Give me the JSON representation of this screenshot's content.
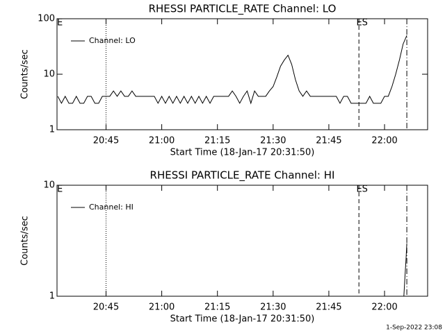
{
  "chart_data": [
    {
      "type": "line",
      "title": "RHESSI PARTICLE_RATE Channel: LO",
      "xlabel": "Start Time (18-Jan-17 20:31:50)",
      "ylabel": "Counts/sec",
      "log_y": true,
      "ylim": [
        1,
        100
      ],
      "yticks": [
        1,
        10,
        100
      ],
      "xlim": [
        1231.8,
        1331.6
      ],
      "xticks": [
        {
          "value": 1245,
          "label": "20:45"
        },
        {
          "value": 1260,
          "label": "21:00"
        },
        {
          "value": 1275,
          "label": "21:15"
        },
        {
          "value": 1290,
          "label": "21:30"
        },
        {
          "value": 1305,
          "label": "21:45"
        },
        {
          "value": 1320,
          "label": "22:00"
        }
      ],
      "x": [
        1232,
        1233,
        1234,
        1235,
        1236,
        1237,
        1238,
        1239,
        1240,
        1241,
        1242,
        1243,
        1244,
        1245,
        1246,
        1247,
        1248,
        1249,
        1250,
        1251,
        1252,
        1253,
        1254,
        1255,
        1256,
        1257,
        1258,
        1259,
        1260,
        1261,
        1262,
        1263,
        1264,
        1265,
        1266,
        1267,
        1268,
        1269,
        1270,
        1271,
        1272,
        1273,
        1274,
        1275,
        1276,
        1277,
        1278,
        1279,
        1280,
        1281,
        1282,
        1283,
        1284,
        1285,
        1286,
        1287,
        1288,
        1289,
        1290,
        1291,
        1292,
        1293,
        1294,
        1295,
        1296,
        1297,
        1298,
        1299,
        1300,
        1301,
        1302,
        1303,
        1304,
        1305,
        1306,
        1307,
        1308,
        1309,
        1310,
        1311,
        1312,
        1313,
        1314,
        1315,
        1316,
        1317,
        1318,
        1319,
        1320,
        1321,
        1322,
        1323,
        1324,
        1325,
        1326
      ],
      "series": [
        {
          "name": "Channel: LO",
          "color": "#000000",
          "values": [
            4,
            3,
            4,
            3,
            3,
            4,
            3,
            3,
            4,
            4,
            3,
            3,
            4,
            4,
            4,
            5,
            4,
            5,
            4,
            4,
            5,
            4,
            4,
            4,
            4,
            4,
            4,
            3,
            4,
            3,
            4,
            3,
            4,
            3,
            4,
            3,
            4,
            3,
            4,
            3,
            4,
            3,
            4,
            4,
            4,
            4,
            4,
            5,
            4,
            3,
            4,
            5,
            3,
            5,
            4,
            4,
            4,
            5,
            6,
            9,
            14,
            18,
            22,
            15,
            8,
            5,
            4,
            5,
            4,
            4,
            4,
            4,
            4,
            4,
            4,
            4,
            3,
            4,
            4,
            3,
            3,
            3,
            3,
            3,
            4,
            3,
            3,
            3,
            4,
            4,
            6,
            10,
            18,
            35,
            50
          ]
        }
      ],
      "vlines": [
        {
          "x": 1245,
          "style": "dotted"
        },
        {
          "x": 1313.1,
          "style": "dashed"
        },
        {
          "x": 1326,
          "style": "dashdot"
        }
      ],
      "annotations": [
        {
          "text": "E",
          "x": 1231.8
        },
        {
          "text": "ES",
          "x": 1312.4
        }
      ]
    },
    {
      "type": "line",
      "title": "RHESSI PARTICLE_RATE Channel: HI",
      "xlabel": "Start Time (18-Jan-17 20:31:50)",
      "ylabel": "Counts/sec",
      "log_y": true,
      "ylim": [
        1,
        10
      ],
      "yticks": [
        1,
        10
      ],
      "xlim": [
        1231.8,
        1331.6
      ],
      "xticks": [
        {
          "value": 1245,
          "label": "20:45"
        },
        {
          "value": 1260,
          "label": "21:00"
        },
        {
          "value": 1275,
          "label": "21:15"
        },
        {
          "value": 1290,
          "label": "21:30"
        },
        {
          "value": 1305,
          "label": "21:45"
        },
        {
          "value": 1320,
          "label": "22:00"
        }
      ],
      "x": [
        1325.2,
        1325.5,
        1325.8,
        1326
      ],
      "series": [
        {
          "name": "Channel: HI",
          "color": "#000000",
          "values": [
            1,
            1.5,
            2.2,
            3
          ]
        }
      ],
      "vlines": [
        {
          "x": 1245,
          "style": "dotted"
        },
        {
          "x": 1313.1,
          "style": "dashed"
        },
        {
          "x": 1326,
          "style": "dashdot"
        }
      ],
      "annotations": [
        {
          "text": "E",
          "x": 1231.8
        },
        {
          "text": "ES",
          "x": 1312.4
        }
      ]
    }
  ],
  "footer": "1-Sep-2022 23:08"
}
